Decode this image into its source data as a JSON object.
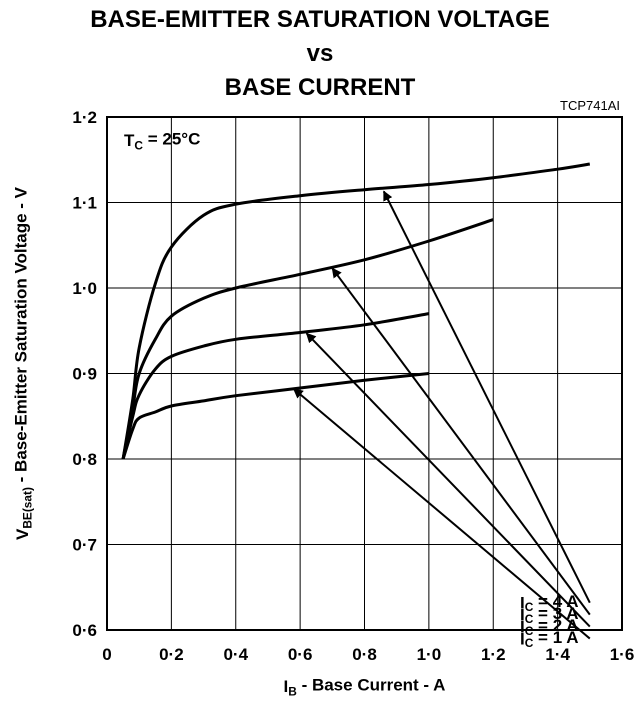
{
  "chart_data": {
    "type": "line",
    "title_lines": [
      "BASE-EMITTER SATURATION VOLTAGE",
      "vs",
      "BASE CURRENT"
    ],
    "figure_code": "TCP741AI",
    "annotation": {
      "base": "T",
      "sub": "C",
      "rest": " = 25°C"
    },
    "xlabel": {
      "base": "I",
      "sub": "B",
      "rest": " - Base Current - A"
    },
    "ylabel": {
      "base": "V",
      "sub": "BE(sat)",
      "rest": " - Base-Emitter Saturation Voltage - V"
    },
    "xlim": [
      0,
      1.6
    ],
    "ylim": [
      0.6,
      1.2
    ],
    "x_ticks": [
      "0",
      "0·2",
      "0·4",
      "0·6",
      "0·8",
      "1·0",
      "1·2",
      "1·4",
      "1·6"
    ],
    "y_ticks": [
      "0·6",
      "0·7",
      "0·8",
      "0·9",
      "1·0",
      "1·1",
      "1·2"
    ],
    "grid": true,
    "series": [
      {
        "name": "I_C = 4 A",
        "label": {
          "base": "I",
          "sub": "C",
          "rest": " = 4 A"
        },
        "points": [
          [
            0.05,
            0.8
          ],
          [
            0.08,
            0.87
          ],
          [
            0.1,
            0.93
          ],
          [
            0.15,
            1.005
          ],
          [
            0.2,
            1.048
          ],
          [
            0.3,
            1.085
          ],
          [
            0.4,
            1.098
          ],
          [
            0.6,
            1.108
          ],
          [
            0.8,
            1.115
          ],
          [
            1.0,
            1.121
          ],
          [
            1.2,
            1.129
          ],
          [
            1.4,
            1.139
          ],
          [
            1.5,
            1.145
          ]
        ],
        "arrow_tip": [
          0.86,
          1.113
        ],
        "arrow_tail": [
          1.5,
          0.632
        ]
      },
      {
        "name": "I_C = 3 A",
        "label": {
          "base": "I",
          "sub": "C",
          "rest": " = 3 A"
        },
        "points": [
          [
            0.05,
            0.8
          ],
          [
            0.08,
            0.86
          ],
          [
            0.1,
            0.9
          ],
          [
            0.15,
            0.94
          ],
          [
            0.2,
            0.967
          ],
          [
            0.3,
            0.988
          ],
          [
            0.4,
            1.0
          ],
          [
            0.6,
            1.016
          ],
          [
            0.8,
            1.033
          ],
          [
            1.0,
            1.055
          ],
          [
            1.2,
            1.08
          ]
        ],
        "arrow_tip": [
          0.7,
          1.023
        ],
        "arrow_tail": [
          1.5,
          0.618
        ]
      },
      {
        "name": "I_C = 2 A",
        "label": {
          "base": "I",
          "sub": "C",
          "rest": " = 2 A"
        },
        "points": [
          [
            0.05,
            0.8
          ],
          [
            0.08,
            0.85
          ],
          [
            0.1,
            0.875
          ],
          [
            0.15,
            0.905
          ],
          [
            0.2,
            0.92
          ],
          [
            0.3,
            0.932
          ],
          [
            0.4,
            0.94
          ],
          [
            0.6,
            0.948
          ],
          [
            0.8,
            0.957
          ],
          [
            1.0,
            0.97
          ]
        ],
        "arrow_tip": [
          0.62,
          0.947
        ],
        "arrow_tail": [
          1.5,
          0.604
        ]
      },
      {
        "name": "I_C = 1 A",
        "label": {
          "base": "I",
          "sub": "C",
          "rest": " = 1 A"
        },
        "points": [
          [
            0.05,
            0.8
          ],
          [
            0.08,
            0.835
          ],
          [
            0.1,
            0.848
          ],
          [
            0.15,
            0.855
          ],
          [
            0.2,
            0.862
          ],
          [
            0.3,
            0.868
          ],
          [
            0.4,
            0.874
          ],
          [
            0.6,
            0.883
          ],
          [
            0.8,
            0.892
          ],
          [
            1.0,
            0.9
          ]
        ],
        "arrow_tip": [
          0.58,
          0.882
        ],
        "arrow_tail": [
          1.5,
          0.59
        ]
      }
    ]
  }
}
